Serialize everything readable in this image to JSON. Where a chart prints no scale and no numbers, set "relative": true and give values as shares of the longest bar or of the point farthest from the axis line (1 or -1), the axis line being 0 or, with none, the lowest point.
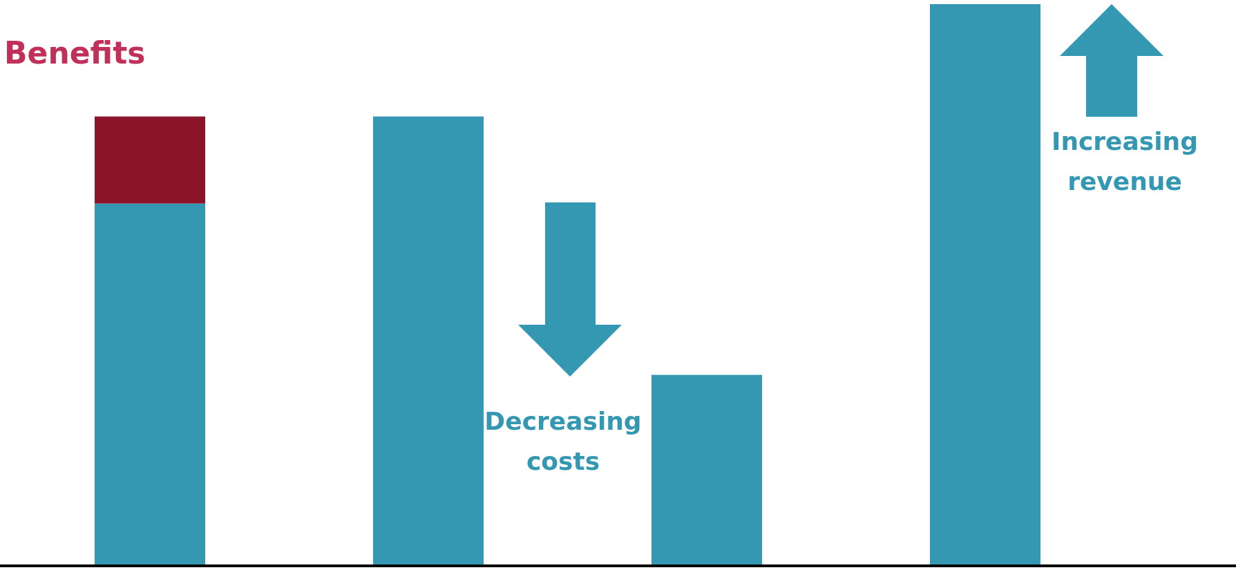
{
  "chart_data": {
    "type": "bar",
    "title": "Benefits",
    "relative": true,
    "stacked": true,
    "categories": [
      null,
      null,
      null,
      null
    ],
    "series": [
      {
        "color": "#3598b3",
        "values": [
          0.645,
          0.8,
          0.34,
          1
        ]
      },
      {
        "color": "#8b1428",
        "values": [
          0.155,
          null,
          null,
          null
        ]
      }
    ],
    "annotations": [
      "Decreasing costs",
      "Increasing revenue"
    ],
    "legend": false
  }
}
